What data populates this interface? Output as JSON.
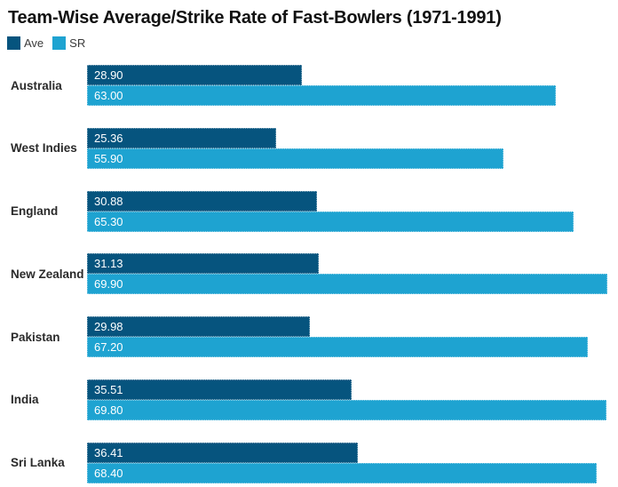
{
  "title": "Team-Wise Average/Strike Rate of Fast-Bowlers (1971-1991)",
  "colors": {
    "ave": "#06547E",
    "sr": "#1EA3D1",
    "title_text": "#111111",
    "category_text": "#2a2a2a",
    "legend_text": "#3a3a3a",
    "value_text": "#ffffff",
    "background": "#ffffff"
  },
  "chart_data": {
    "type": "bar",
    "orientation": "horizontal",
    "title": "Team-Wise Average/Strike Rate of Fast-Bowlers (1971-1991)",
    "categories": [
      "Australia",
      "West Indies",
      "England",
      "New Zealand",
      "Pakistan",
      "India",
      "Sri Lanka"
    ],
    "series": [
      {
        "name": "Ave",
        "color": "#06547E",
        "values": [
          28.9,
          25.36,
          30.88,
          31.13,
          29.98,
          35.51,
          36.41
        ],
        "labels": [
          "28.90",
          "25.36",
          "30.88",
          "31.13",
          "29.98",
          "35.51",
          "36.41"
        ]
      },
      {
        "name": "SR",
        "color": "#1EA3D1",
        "values": [
          63.0,
          55.9,
          65.3,
          69.9,
          67.2,
          69.8,
          68.4
        ],
        "labels": [
          "63.00",
          "55.90",
          "65.30",
          "69.90",
          "67.20",
          "69.80",
          "68.40"
        ]
      }
    ],
    "xlim": [
      0,
      70
    ],
    "grid": false,
    "axis_labels_shown": false,
    "legend_position": "top-left",
    "value_labels": "inside-start"
  }
}
